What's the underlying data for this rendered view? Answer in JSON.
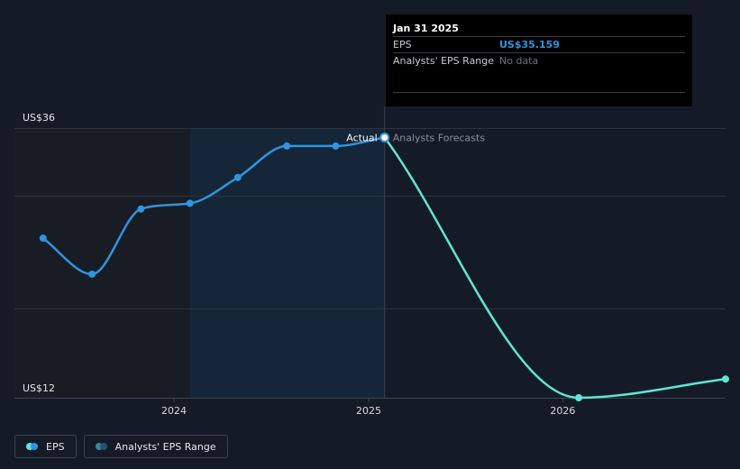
{
  "chart_data": {
    "type": "line",
    "ylim": [
      12,
      36
    ],
    "y_min_label": "US$12",
    "y_max_label": "US$36",
    "x_ticks": [
      {
        "x": "2024-01-01",
        "label": "2024"
      },
      {
        "x": "2025-01-01",
        "label": "2025"
      },
      {
        "x": "2026-01-01",
        "label": "2026"
      }
    ],
    "past_shade_start": "2024-01-31",
    "divider_date": "2025-01-31",
    "series": [
      {
        "name": "EPS",
        "color": "#2f95e0",
        "points": [
          {
            "x": "2023-04-30",
            "y": 26.2
          },
          {
            "x": "2023-07-31",
            "y": 23.0
          },
          {
            "x": "2023-10-31",
            "y": 28.8
          },
          {
            "x": "2024-01-31",
            "y": 29.3
          },
          {
            "x": "2024-04-30",
            "y": 31.6
          },
          {
            "x": "2024-07-31",
            "y": 34.4
          },
          {
            "x": "2024-10-31",
            "y": 34.4
          },
          {
            "x": "2025-01-31",
            "y": 35.159
          }
        ]
      },
      {
        "name": "Analysts Forecasts",
        "color": "#5ee6d4",
        "points": [
          {
            "x": "2025-01-31",
            "y": 35.159
          },
          {
            "x": "2026-01-31",
            "y": 12.0
          },
          {
            "x": "2027-01-31",
            "y": 14.2
          }
        ]
      }
    ],
    "annotations": {
      "actual": "Actual",
      "forecast": "Analysts Forecasts"
    }
  },
  "tooltip": {
    "date": "Jan 31 2025",
    "eps_label": "EPS",
    "eps_value": "US$35.159",
    "range_label": "Analysts' EPS Range",
    "range_value": "No data"
  },
  "legend": {
    "eps": "EPS",
    "range": "Analysts' EPS Range"
  },
  "colors": {
    "background": "#151b26",
    "eps": "#2f95e0",
    "forecast": "#5ee6d4",
    "range": "#2a6c8a"
  }
}
